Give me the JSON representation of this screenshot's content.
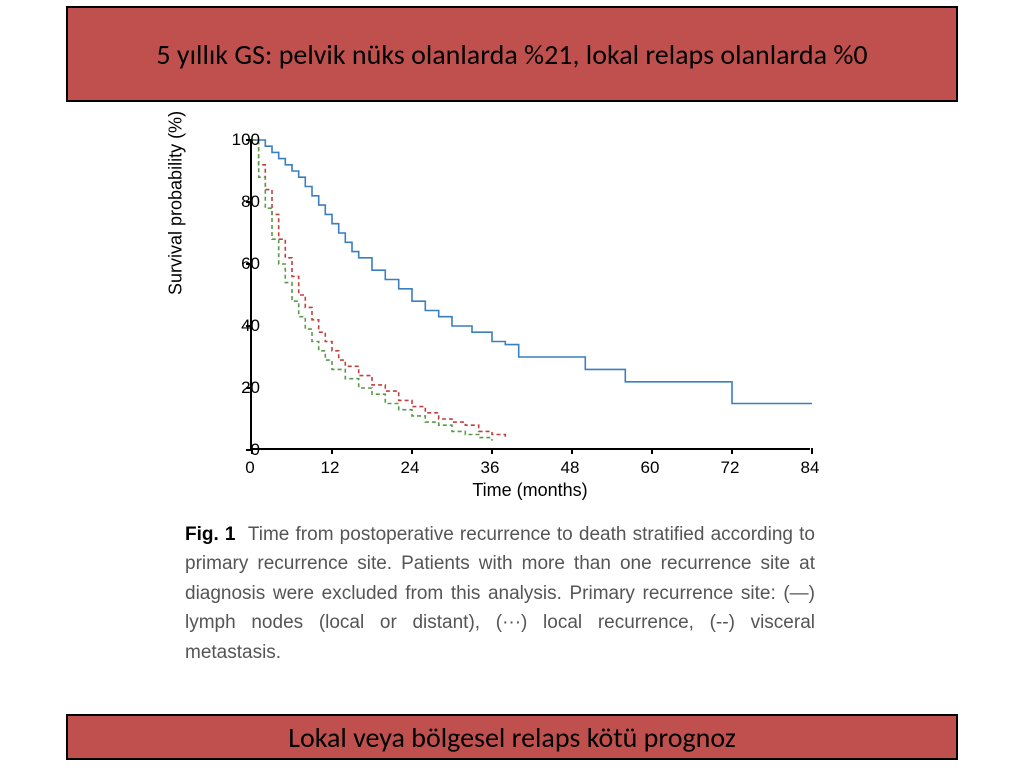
{
  "banner_top": "5 yıllık GS: pelvik nüks olanlarda %21, lokal relaps olanlarda %0",
  "banner_bottom": "Lokal veya bölgesel relaps kötü prognoz",
  "chart": {
    "type": "kaplan-meier",
    "x_axis_title": "Time (months)",
    "y_axis_title": "Survival probability (%)",
    "xlim": [
      0,
      84
    ],
    "ylim": [
      0,
      100
    ],
    "xticks": [
      0,
      12,
      24,
      36,
      48,
      60,
      72,
      84
    ],
    "yticks": [
      0,
      20,
      40,
      60,
      80,
      100
    ],
    "background_color": "#ffffff",
    "axis_color": "#000000",
    "tick_fontsize": 17,
    "axis_title_fontsize": 18,
    "line_width": 1.6,
    "series": [
      {
        "name": "lymph-nodes",
        "color": "#3a7fbf",
        "dash": "none",
        "points": [
          [
            0,
            100
          ],
          [
            2,
            98
          ],
          [
            3,
            96
          ],
          [
            4,
            94
          ],
          [
            5,
            92
          ],
          [
            6,
            90
          ],
          [
            7,
            88
          ],
          [
            8,
            85
          ],
          [
            9,
            82
          ],
          [
            10,
            79
          ],
          [
            11,
            76
          ],
          [
            12,
            73
          ],
          [
            13,
            70
          ],
          [
            14,
            67
          ],
          [
            15,
            64
          ],
          [
            16,
            62
          ],
          [
            18,
            58
          ],
          [
            20,
            55
          ],
          [
            22,
            52
          ],
          [
            24,
            48
          ],
          [
            26,
            45
          ],
          [
            28,
            43
          ],
          [
            30,
            40
          ],
          [
            33,
            38
          ],
          [
            36,
            35
          ],
          [
            38,
            34
          ],
          [
            40,
            30
          ],
          [
            44,
            30
          ],
          [
            48,
            30
          ],
          [
            50,
            26
          ],
          [
            54,
            26
          ],
          [
            56,
            22
          ],
          [
            60,
            22
          ],
          [
            64,
            22
          ],
          [
            68,
            22
          ],
          [
            72,
            15
          ],
          [
            78,
            15
          ],
          [
            84,
            15
          ]
        ]
      },
      {
        "name": "local-recurrence",
        "color": "#c04040",
        "dash": "4 3",
        "points": [
          [
            0,
            100
          ],
          [
            1,
            92
          ],
          [
            2,
            84
          ],
          [
            3,
            76
          ],
          [
            4,
            68
          ],
          [
            5,
            62
          ],
          [
            6,
            56
          ],
          [
            7,
            50
          ],
          [
            8,
            46
          ],
          [
            9,
            42
          ],
          [
            10,
            38
          ],
          [
            11,
            35
          ],
          [
            12,
            32
          ],
          [
            13,
            29
          ],
          [
            14,
            27
          ],
          [
            16,
            24
          ],
          [
            18,
            21
          ],
          [
            20,
            19
          ],
          [
            22,
            16
          ],
          [
            24,
            14
          ],
          [
            26,
            12
          ],
          [
            28,
            10
          ],
          [
            30,
            9
          ],
          [
            32,
            8
          ],
          [
            34,
            6
          ],
          [
            36,
            5
          ],
          [
            38,
            4
          ]
        ]
      },
      {
        "name": "visceral-metastasis",
        "color": "#5a9a4a",
        "dash": "4 3",
        "points": [
          [
            0,
            100
          ],
          [
            1,
            88
          ],
          [
            2,
            78
          ],
          [
            3,
            68
          ],
          [
            4,
            60
          ],
          [
            5,
            54
          ],
          [
            6,
            48
          ],
          [
            7,
            43
          ],
          [
            8,
            39
          ],
          [
            9,
            35
          ],
          [
            10,
            32
          ],
          [
            11,
            29
          ],
          [
            12,
            26
          ],
          [
            14,
            23
          ],
          [
            16,
            20
          ],
          [
            18,
            18
          ],
          [
            20,
            15
          ],
          [
            22,
            13
          ],
          [
            24,
            11
          ],
          [
            26,
            9
          ],
          [
            28,
            8
          ],
          [
            30,
            6
          ],
          [
            32,
            5
          ],
          [
            34,
            4
          ],
          [
            36,
            3
          ]
        ]
      }
    ]
  },
  "caption": {
    "label": "Fig. 1",
    "text": "Time from postoperative recurrence to death stratified according to primary recurrence site. Patients with more than one recurrence site at diagnosis were excluded from this analysis. Primary recurrence site: (—) lymph nodes (local or distant), (···) local recurrence, (--) visceral metastasis.",
    "label_color": "#000000",
    "text_color": "#555555",
    "fontsize": 19
  },
  "colors": {
    "banner_bg": "#c0504d",
    "banner_border": "#000000",
    "banner_text": "#000000"
  }
}
